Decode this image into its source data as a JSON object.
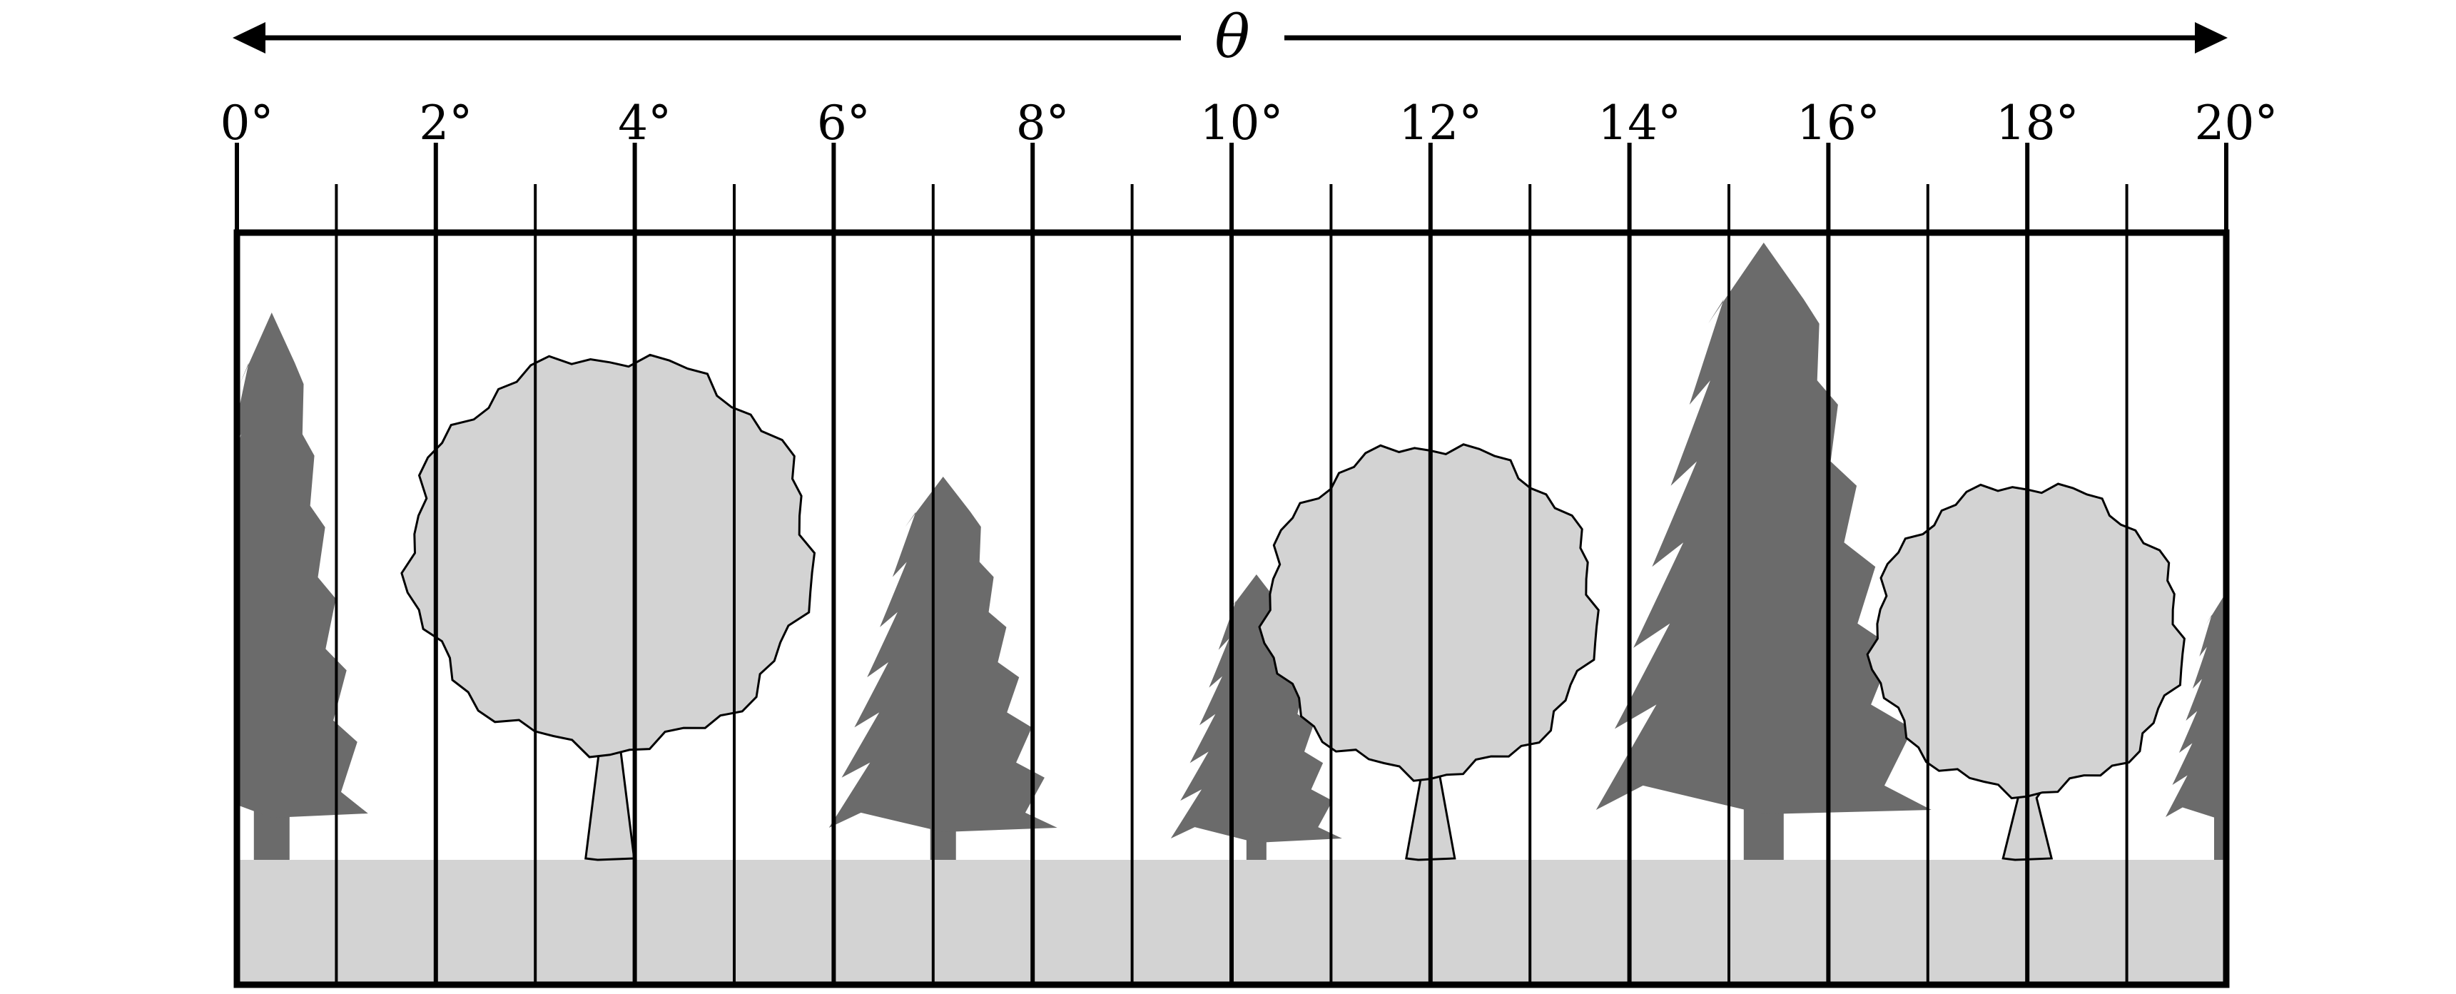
{
  "diagram": {
    "axis_symbol": "θ",
    "tick_labels": [
      "0°",
      "2°",
      "4°",
      "6°",
      "8°",
      "10°",
      "12°",
      "14°",
      "16°",
      "18°",
      "20°"
    ],
    "angle_range": [
      0,
      20
    ],
    "minor_step": 1,
    "colors": {
      "conifer": "#6b6b6b",
      "deciduous": "#d3d3d3",
      "ground": "#d3d3d3",
      "line": "#000000",
      "background": "#ffffff"
    },
    "trees": [
      {
        "kind": "conifer",
        "position_deg": 0.35
      },
      {
        "kind": "deciduous",
        "position_deg": 3.75
      },
      {
        "kind": "conifer",
        "position_deg": 7.1
      },
      {
        "kind": "conifer",
        "position_deg": 10.25
      },
      {
        "kind": "deciduous",
        "position_deg": 12.0
      },
      {
        "kind": "conifer",
        "position_deg": 15.35
      },
      {
        "kind": "deciduous",
        "position_deg": 18.0
      },
      {
        "kind": "conifer",
        "position_deg": 20.0
      }
    ]
  }
}
